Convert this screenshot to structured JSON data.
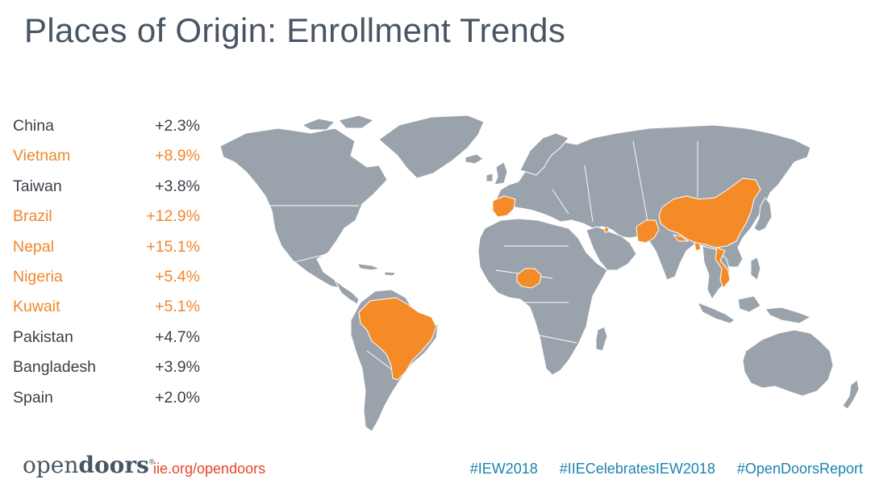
{
  "title": "Places of Origin: Enrollment Trends",
  "countries": [
    {
      "name": "China",
      "change": "+2.3%",
      "highlight": false
    },
    {
      "name": "Vietnam",
      "change": "+8.9%",
      "highlight": true
    },
    {
      "name": "Taiwan",
      "change": "+3.8%",
      "highlight": false
    },
    {
      "name": "Brazil",
      "change": "+12.9%",
      "highlight": true
    },
    {
      "name": "Nepal",
      "change": "+15.1%",
      "highlight": true
    },
    {
      "name": "Nigeria",
      "change": "+5.4%",
      "highlight": true
    },
    {
      "name": "Kuwait",
      "change": "+5.1%",
      "highlight": true
    },
    {
      "name": "Pakistan",
      "change": "+4.7%",
      "highlight": false
    },
    {
      "name": "Bangladesh",
      "change": "+3.9%",
      "highlight": false
    },
    {
      "name": "Spain",
      "change": "+2.0%",
      "highlight": false
    }
  ],
  "map": {
    "highlighted_countries": [
      "China",
      "Vietnam",
      "Brazil",
      "Nigeria",
      "Pakistan",
      "Spain",
      "Nepal",
      "Kuwait",
      "Bangladesh"
    ],
    "land_color": "#9aa3ac",
    "highlight_color": "#f48b26"
  },
  "footer": {
    "logo_prefix": "open",
    "logo_bold": "doors",
    "logo_mark": "®",
    "url": "iie.org/opendoors",
    "hashtags": [
      "#IEW2018",
      "#IIECelebratesIEW2018",
      "#OpenDoorsReport"
    ]
  },
  "colors": {
    "title": "#4a5563",
    "highlight_text": "#f2862a",
    "normal_text": "#3a3f4a",
    "url": "#e8442b",
    "hashtag": "#1c83b0"
  }
}
